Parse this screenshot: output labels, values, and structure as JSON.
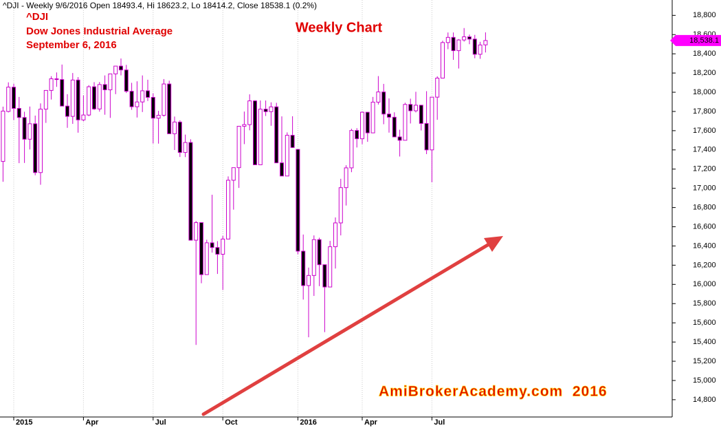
{
  "chart_data": {
    "type": "candlestick",
    "title": "^DJI - Weekly 9/6/2016 Open 18493.4, Hi 18623.2, Lo 18414.2, Close 18538.1 (0.2%)",
    "annotations": [
      "^DJI",
      "Dow Jones Industrial Average",
      "September 6, 2016",
      "Weekly Chart",
      "AmiBrokerAcademy.com  2016"
    ],
    "categories": [
      null,
      null,
      "2015",
      null,
      null,
      null,
      null,
      null,
      null,
      null,
      null,
      null,
      null,
      null,
      null,
      "Apr",
      null,
      null,
      null,
      null,
      null,
      null,
      null,
      null,
      null,
      null,
      null,
      null,
      "Jul",
      null,
      null,
      null,
      null,
      null,
      null,
      null,
      null,
      null,
      null,
      null,
      null,
      "Oct",
      null,
      null,
      null,
      null,
      null,
      null,
      null,
      null,
      null,
      null,
      null,
      null,
      null,
      "2016",
      null,
      null,
      null,
      null,
      null,
      null,
      null,
      null,
      null,
      null,
      null,
      "Apr",
      null,
      null,
      null,
      null,
      null,
      null,
      null,
      null,
      null,
      null,
      null,
      null,
      "Jul",
      null,
      null,
      null,
      null,
      null,
      null,
      null,
      null,
      null,
      null
    ],
    "open": [
      17280,
      17800,
      18053,
      17832,
      17737,
      17511,
      17672,
      17164,
      17824,
      18019,
      18140,
      18132,
      17856,
      17749,
      18127,
      17712,
      17763,
      18057,
      17826,
      18080,
      18025,
      18191,
      18272,
      18232,
      18010,
      17849,
      17899,
      18015,
      17947,
      17730,
      17760,
      18086,
      17568,
      17690,
      17373,
      17477,
      16460,
      16643,
      16102,
      16433,
      16384,
      16314,
      16472,
      17084,
      17215,
      17646,
      17663,
      17910,
      17245,
      17824,
      17798,
      17848,
      17265,
      17128,
      17552,
      17405,
      16346,
      15988,
      16093,
      16466,
      16205,
      15973,
      16392,
      16640,
      17007,
      17213,
      17602,
      17516,
      17792,
      17577,
      17897,
      18003,
      17773,
      17740,
      17535,
      17500,
      17873,
      17807,
      17865,
      17675,
      17400,
      17949,
      18147,
      18517,
      18571,
      18433,
      18544,
      18577,
      18553,
      18395,
      18493
    ],
    "high": [
      17850,
      18103,
      18088,
      17951,
      17797,
      17851,
      17757,
      17884,
      18019,
      18167,
      18206,
      18288,
      17980,
      18200,
      18158,
      17967,
      18074,
      18105,
      18106,
      18175,
      18191,
      18272,
      18351,
      18285,
      18098,
      18114,
      18175,
      18130,
      17988,
      17806,
      18137,
      18120,
      17747,
      17708,
      17559,
      17511,
      16660,
      16643,
      16465,
      16933,
      16450,
      16505,
      17124,
      17215,
      17646,
      17799,
      17978,
      17918,
      17914,
      17914,
      17895,
      17890,
      17749,
      17582,
      17750,
      17405,
      16519,
      16175,
      16510,
      16486,
      16205,
      16453,
      16697,
      17099,
      17240,
      17620,
      17626,
      17800,
      17792,
      17951,
      18168,
      18087,
      17936,
      17791,
      17610,
      17891,
      17933,
      18005,
      17865,
      18011,
      17930,
      18166,
      18537,
      18622,
      18622,
      18553,
      18668,
      18600,
      18597,
      18525,
      18623
    ],
    "low": [
      17068,
      17790,
      17711,
      17262,
      17264,
      17404,
      17136,
      17037,
      17681,
      17924,
      18056,
      17856,
      17630,
      17671,
      17579,
      17698,
      17751,
      17814,
      17798,
      17766,
      17733,
      17980,
      18176,
      17992,
      17817,
      17737,
      17794,
      17909,
      17466,
      17465,
      17747,
      17568,
      17399,
      17326,
      17325,
      16459,
      15370,
      16012,
      16100,
      16331,
      16109,
      15942,
      16472,
      16778,
      17004,
      17460,
      17604,
      17245,
      17245,
      17753,
      17651,
      17265,
      17128,
      17128,
      17421,
      16314,
      15842,
      15450,
      15880,
      15982,
      15503,
      15973,
      16165,
      16510,
      16821,
      17168,
      17425,
      17460,
      17484,
      17577,
      17872,
      17667,
      17580,
      17535,
      17331,
      17500,
      17675,
      17790,
      17602,
      17356,
      17063,
      17713,
      18147,
      18448,
      18337,
      18247,
      18527,
      18500,
      18354,
      18348,
      18414
    ],
    "close": [
      17804,
      18053,
      17832,
      17737,
      17511,
      17672,
      17164,
      17824,
      18019,
      18140,
      18132,
      17856,
      17749,
      18127,
      17712,
      17763,
      18057,
      17826,
      18080,
      18025,
      18191,
      18272,
      18232,
      18010,
      17849,
      17899,
      18015,
      17947,
      17730,
      17760,
      18086,
      17568,
      17690,
      17373,
      17477,
      16460,
      16643,
      16102,
      16433,
      16384,
      16314,
      16472,
      17084,
      17215,
      17646,
      17663,
      17910,
      17245,
      17824,
      17798,
      17848,
      17265,
      17128,
      17552,
      17425,
      16346,
      15988,
      16093,
      16466,
      16205,
      15973,
      16392,
      16640,
      17007,
      17213,
      17602,
      17516,
      17792,
      17577,
      17897,
      18003,
      17773,
      17740,
      17535,
      17500,
      17873,
      17807,
      17865,
      17675,
      17400,
      17949,
      18147,
      18517,
      18571,
      18433,
      18544,
      18577,
      18553,
      18395,
      18492,
      18538
    ],
    "up_color": "#ffffff",
    "down_color": "#000000",
    "wick_color": "#cc00cc",
    "last_close": 18538.1,
    "last_close_label": "18,538.1",
    "last_close_color": "#ff00ff",
    "ylim": [
      14620,
      18960
    ],
    "yticks": [
      {
        "value": 14800,
        "label": "14,800"
      },
      {
        "value": 15000,
        "label": "15,000"
      },
      {
        "value": 15200,
        "label": "15,200"
      },
      {
        "value": 15400,
        "label": "15,400"
      },
      {
        "value": 15600,
        "label": "15,600"
      },
      {
        "value": 15800,
        "label": "15,800"
      },
      {
        "value": 16000,
        "label": "16,000"
      },
      {
        "value": 16200,
        "label": "16,200"
      },
      {
        "value": 16400,
        "label": "16,400"
      },
      {
        "value": 16600,
        "label": "16,600"
      },
      {
        "value": 16800,
        "label": "16,800"
      },
      {
        "value": 17000,
        "label": "17,000"
      },
      {
        "value": 17200,
        "label": "17,200"
      },
      {
        "value": 17400,
        "label": "17,400"
      },
      {
        "value": 17600,
        "label": "17,600"
      },
      {
        "value": 17800,
        "label": "17,800"
      },
      {
        "value": 18000,
        "label": "18,000"
      },
      {
        "value": 18200,
        "label": "18,200"
      },
      {
        "value": 18400,
        "label": "18,400"
      },
      {
        "value": 18600,
        "label": "18,600"
      },
      {
        "value": 18800,
        "label": "18,800"
      }
    ],
    "grid": true
  }
}
